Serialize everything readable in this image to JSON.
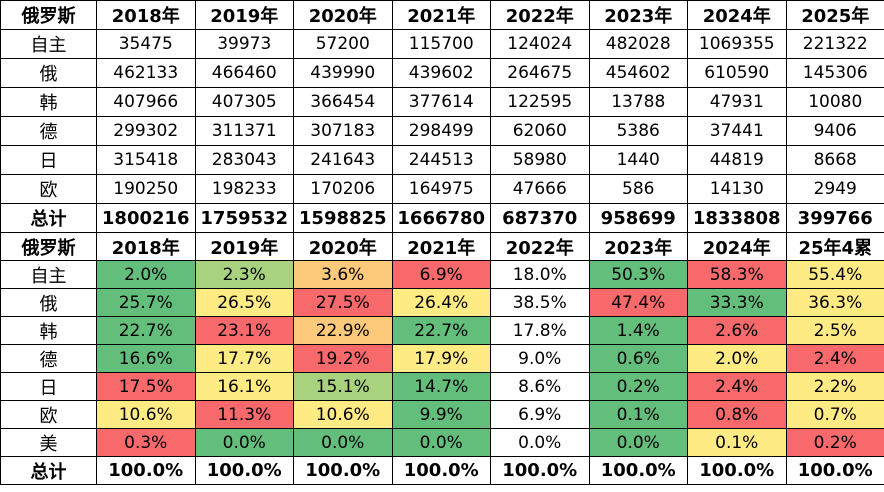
{
  "colors": {
    "dark_green": "#63be7b",
    "light_green": "#a9d27f",
    "yellow": "#ffeb84",
    "orange": "#fdc97b",
    "red": "#f8696b",
    "white": "#ffffff"
  },
  "table1": {
    "header": [
      "俄罗斯",
      "2018年",
      "2019年",
      "2020年",
      "2021年",
      "2022年",
      "2023年",
      "2024年",
      "2025年"
    ],
    "rows": [
      {
        "label": "自主",
        "values": [
          "35475",
          "39973",
          "57200",
          "115700",
          "124024",
          "482028",
          "1069355",
          "221322"
        ]
      },
      {
        "label": "俄",
        "values": [
          "462133",
          "466460",
          "439990",
          "439602",
          "264675",
          "454602",
          "610590",
          "145306"
        ]
      },
      {
        "label": "韩",
        "values": [
          "407966",
          "407305",
          "366454",
          "377614",
          "122595",
          "13788",
          "47931",
          "10080"
        ]
      },
      {
        "label": "德",
        "values": [
          "299302",
          "311371",
          "307183",
          "298499",
          "62060",
          "5386",
          "37441",
          "9406"
        ]
      },
      {
        "label": "日",
        "values": [
          "315418",
          "283043",
          "241643",
          "244513",
          "58980",
          "1440",
          "44819",
          "8668"
        ]
      },
      {
        "label": "欧",
        "values": [
          "190250",
          "198233",
          "170206",
          "164975",
          "47666",
          "586",
          "14130",
          "2949"
        ]
      }
    ],
    "total": {
      "label": "总计",
      "values": [
        "1800216",
        "1759532",
        "1598825",
        "1666780",
        "687370",
        "958699",
        "1833808",
        "399766"
      ]
    }
  },
  "table2": {
    "header": [
      "俄罗斯",
      "2018年",
      "2019年",
      "2020年",
      "2021年",
      "2022年",
      "2023年",
      "2024年",
      "25年4累"
    ],
    "rows": [
      {
        "label": "自主",
        "values": [
          "2.0%",
          "2.3%",
          "3.6%",
          "6.9%",
          "18.0%",
          "50.3%",
          "58.3%",
          "55.4%"
        ],
        "colors": [
          "#63be7b",
          "#a9d27f",
          "#fdc97b",
          "#f8696b",
          "#ffffff",
          "#63be7b",
          "#f8696b",
          "#ffeb84"
        ]
      },
      {
        "label": "俄",
        "values": [
          "25.7%",
          "26.5%",
          "27.5%",
          "26.4%",
          "38.5%",
          "47.4%",
          "33.3%",
          "36.3%"
        ],
        "colors": [
          "#63be7b",
          "#ffeb84",
          "#f8696b",
          "#ffeb84",
          "#ffffff",
          "#f8696b",
          "#63be7b",
          "#ffeb84"
        ]
      },
      {
        "label": "韩",
        "values": [
          "22.7%",
          "23.1%",
          "22.9%",
          "22.7%",
          "17.8%",
          "1.4%",
          "2.6%",
          "2.5%"
        ],
        "colors": [
          "#63be7b",
          "#f8696b",
          "#fdc97b",
          "#63be7b",
          "#ffffff",
          "#63be7b",
          "#f8696b",
          "#ffeb84"
        ]
      },
      {
        "label": "德",
        "values": [
          "16.6%",
          "17.7%",
          "19.2%",
          "17.9%",
          "9.0%",
          "0.6%",
          "2.0%",
          "2.4%"
        ],
        "colors": [
          "#63be7b",
          "#ffeb84",
          "#f8696b",
          "#ffeb84",
          "#ffffff",
          "#63be7b",
          "#ffeb84",
          "#f8696b"
        ]
      },
      {
        "label": "日",
        "values": [
          "17.5%",
          "16.1%",
          "15.1%",
          "14.7%",
          "8.6%",
          "0.2%",
          "2.4%",
          "2.2%"
        ],
        "colors": [
          "#f8696b",
          "#ffeb84",
          "#a9d27f",
          "#63be7b",
          "#ffffff",
          "#63be7b",
          "#f8696b",
          "#ffeb84"
        ]
      },
      {
        "label": "欧",
        "values": [
          "10.6%",
          "11.3%",
          "10.6%",
          "9.9%",
          "6.9%",
          "0.1%",
          "0.8%",
          "0.7%"
        ],
        "colors": [
          "#ffeb84",
          "#f8696b",
          "#ffeb84",
          "#63be7b",
          "#ffffff",
          "#63be7b",
          "#f8696b",
          "#ffeb84"
        ]
      },
      {
        "label": "美",
        "values": [
          "0.3%",
          "0.0%",
          "0.0%",
          "0.0%",
          "0.0%",
          "0.0%",
          "0.1%",
          "0.2%"
        ],
        "colors": [
          "#f8696b",
          "#63be7b",
          "#63be7b",
          "#63be7b",
          "#ffffff",
          "#63be7b",
          "#ffeb84",
          "#f8696b"
        ]
      }
    ],
    "total": {
      "label": "总计",
      "values": [
        "100.0%",
        "100.0%",
        "100.0%",
        "100.0%",
        "100.0%",
        "100.0%",
        "100.0%",
        "100.0%"
      ]
    }
  }
}
